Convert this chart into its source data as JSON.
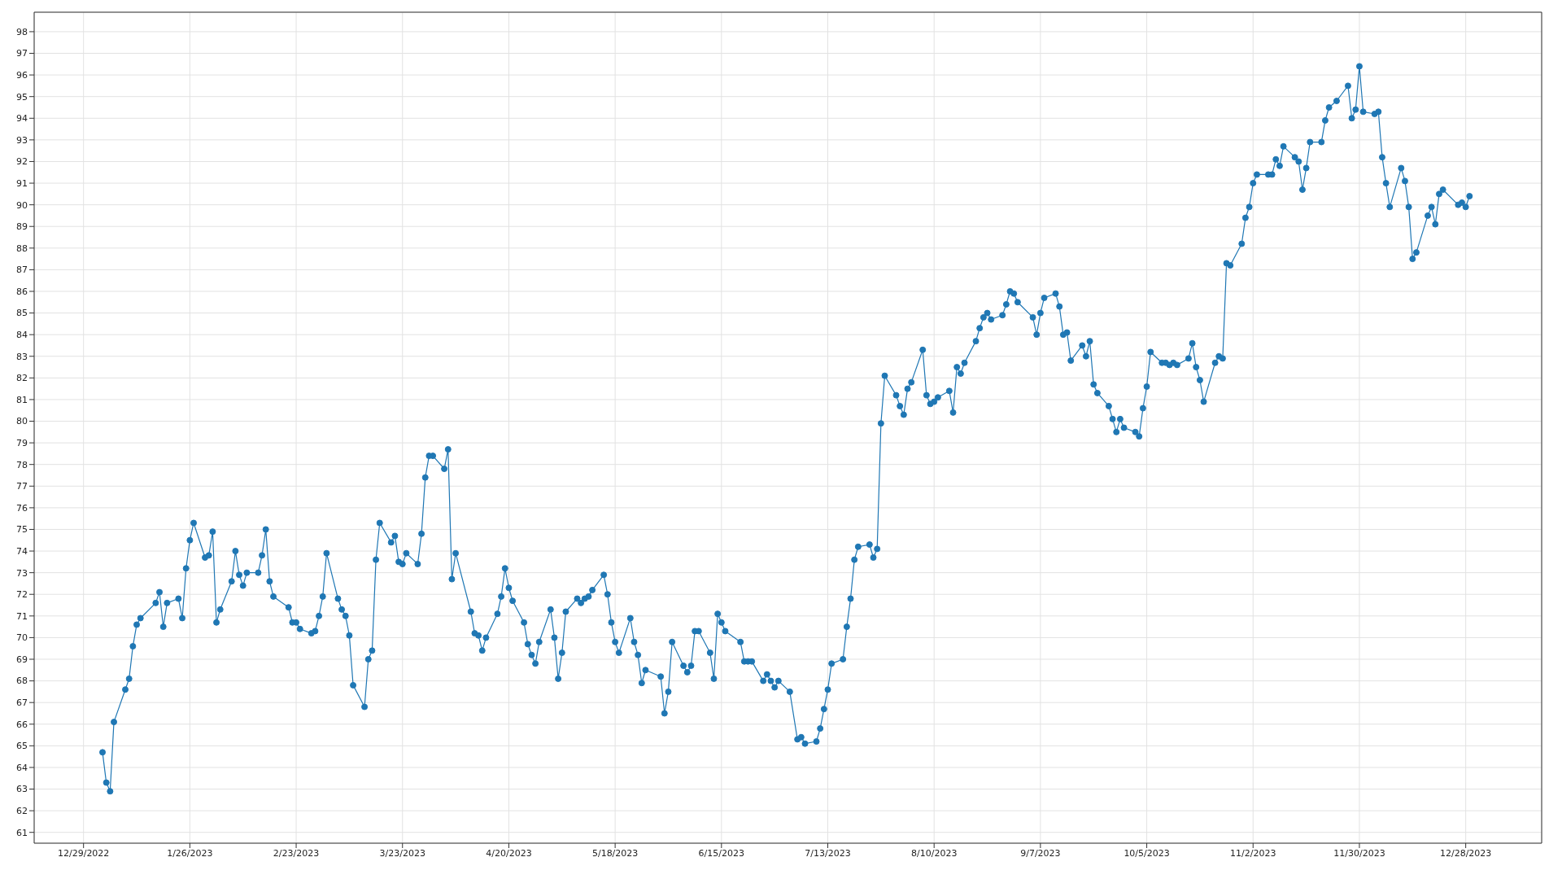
{
  "chart_data": {
    "type": "line",
    "color": "#1f77b4",
    "marker": "circle",
    "grid": true,
    "xlim": [
      "2022-12-16",
      "2024-01-17"
    ],
    "xticks": [
      {
        "value": "2022-12-29",
        "label": "12/29/2022"
      },
      {
        "value": "2023-01-26",
        "label": "1/26/2023"
      },
      {
        "value": "2023-02-23",
        "label": "2/23/2023"
      },
      {
        "value": "2023-03-23",
        "label": "3/23/2023"
      },
      {
        "value": "2023-04-20",
        "label": "4/20/2023"
      },
      {
        "value": "2023-05-18",
        "label": "5/18/2023"
      },
      {
        "value": "2023-06-15",
        "label": "6/15/2023"
      },
      {
        "value": "2023-07-13",
        "label": "7/13/2023"
      },
      {
        "value": "2023-08-10",
        "label": "8/10/2023"
      },
      {
        "value": "2023-09-07",
        "label": "9/7/2023"
      },
      {
        "value": "2023-10-05",
        "label": "10/5/2023"
      },
      {
        "value": "2023-11-02",
        "label": "11/2/2023"
      },
      {
        "value": "2023-11-30",
        "label": "11/30/2023"
      },
      {
        "value": "2023-12-28",
        "label": "12/28/2023"
      }
    ],
    "ylim": [
      60.5,
      98.9
    ],
    "yticks": [
      61,
      62,
      63,
      64,
      65,
      66,
      67,
      68,
      69,
      70,
      71,
      72,
      73,
      74,
      75,
      76,
      77,
      78,
      79,
      80,
      81,
      82,
      83,
      84,
      85,
      86,
      87,
      88,
      89,
      90,
      91,
      92,
      93,
      94,
      95,
      96,
      97,
      98
    ],
    "x": [
      "2023-01-03",
      "2023-01-04",
      "2023-01-05",
      "2023-01-06",
      "2023-01-09",
      "2023-01-10",
      "2023-01-11",
      "2023-01-12",
      "2023-01-13",
      "2023-01-17",
      "2023-01-18",
      "2023-01-19",
      "2023-01-20",
      "2023-01-23",
      "2023-01-24",
      "2023-01-25",
      "2023-01-26",
      "2023-01-27",
      "2023-01-30",
      "2023-01-31",
      "2023-02-01",
      "2023-02-02",
      "2023-02-03",
      "2023-02-06",
      "2023-02-07",
      "2023-02-08",
      "2023-02-09",
      "2023-02-10",
      "2023-02-13",
      "2023-02-14",
      "2023-02-15",
      "2023-02-16",
      "2023-02-17",
      "2023-02-21",
      "2023-02-22",
      "2023-02-23",
      "2023-02-24",
      "2023-02-27",
      "2023-02-28",
      "2023-03-01",
      "2023-03-02",
      "2023-03-03",
      "2023-03-06",
      "2023-03-07",
      "2023-03-08",
      "2023-03-09",
      "2023-03-10",
      "2023-03-13",
      "2023-03-14",
      "2023-03-15",
      "2023-03-16",
      "2023-03-17",
      "2023-03-20",
      "2023-03-21",
      "2023-03-22",
      "2023-03-23",
      "2023-03-24",
      "2023-03-27",
      "2023-03-28",
      "2023-03-29",
      "2023-03-30",
      "2023-03-31",
      "2023-04-03",
      "2023-04-04",
      "2023-04-05",
      "2023-04-06",
      "2023-04-10",
      "2023-04-11",
      "2023-04-12",
      "2023-04-13",
      "2023-04-14",
      "2023-04-17",
      "2023-04-18",
      "2023-04-19",
      "2023-04-20",
      "2023-04-21",
      "2023-04-24",
      "2023-04-25",
      "2023-04-26",
      "2023-04-27",
      "2023-04-28",
      "2023-05-01",
      "2023-05-02",
      "2023-05-03",
      "2023-05-04",
      "2023-05-05",
      "2023-05-08",
      "2023-05-09",
      "2023-05-10",
      "2023-05-11",
      "2023-05-12",
      "2023-05-15",
      "2023-05-16",
      "2023-05-17",
      "2023-05-18",
      "2023-05-19",
      "2023-05-22",
      "2023-05-23",
      "2023-05-24",
      "2023-05-25",
      "2023-05-26",
      "2023-05-30",
      "2023-05-31",
      "2023-06-01",
      "2023-06-02",
      "2023-06-05",
      "2023-06-06",
      "2023-06-07",
      "2023-06-08",
      "2023-06-09",
      "2023-06-12",
      "2023-06-13",
      "2023-06-14",
      "2023-06-15",
      "2023-06-16",
      "2023-06-20",
      "2023-06-21",
      "2023-06-22",
      "2023-06-23",
      "2023-06-26",
      "2023-06-27",
      "2023-06-28",
      "2023-06-29",
      "2023-06-30",
      "2023-07-03",
      "2023-07-05",
      "2023-07-06",
      "2023-07-07",
      "2023-07-10",
      "2023-07-11",
      "2023-07-12",
      "2023-07-13",
      "2023-07-14",
      "2023-07-17",
      "2023-07-18",
      "2023-07-19",
      "2023-07-20",
      "2023-07-21",
      "2023-07-24",
      "2023-07-25",
      "2023-07-26",
      "2023-07-27",
      "2023-07-28",
      "2023-07-31",
      "2023-08-01",
      "2023-08-02",
      "2023-08-03",
      "2023-08-04",
      "2023-08-07",
      "2023-08-08",
      "2023-08-09",
      "2023-08-10",
      "2023-08-11",
      "2023-08-14",
      "2023-08-15",
      "2023-08-16",
      "2023-08-17",
      "2023-08-18",
      "2023-08-21",
      "2023-08-22",
      "2023-08-23",
      "2023-08-24",
      "2023-08-25",
      "2023-08-28",
      "2023-08-29",
      "2023-08-30",
      "2023-08-31",
      "2023-09-01",
      "2023-09-05",
      "2023-09-06",
      "2023-09-07",
      "2023-09-08",
      "2023-09-11",
      "2023-09-12",
      "2023-09-13",
      "2023-09-14",
      "2023-09-15",
      "2023-09-18",
      "2023-09-19",
      "2023-09-20",
      "2023-09-21",
      "2023-09-22",
      "2023-09-25",
      "2023-09-26",
      "2023-09-27",
      "2023-09-28",
      "2023-09-29",
      "2023-10-02",
      "2023-10-03",
      "2023-10-04",
      "2023-10-05",
      "2023-10-06",
      "2023-10-09",
      "2023-10-10",
      "2023-10-11",
      "2023-10-12",
      "2023-10-13",
      "2023-10-16",
      "2023-10-17",
      "2023-10-18",
      "2023-10-19",
      "2023-10-20",
      "2023-10-23",
      "2023-10-24",
      "2023-10-25",
      "2023-10-26",
      "2023-10-27",
      "2023-10-30",
      "2023-10-31",
      "2023-11-01",
      "2023-11-02",
      "2023-11-03",
      "2023-11-06",
      "2023-11-07",
      "2023-11-08",
      "2023-11-09",
      "2023-11-10",
      "2023-11-13",
      "2023-11-14",
      "2023-11-15",
      "2023-11-16",
      "2023-11-17",
      "2023-11-20",
      "2023-11-21",
      "2023-11-22",
      "2023-11-24",
      "2023-11-27",
      "2023-11-28",
      "2023-11-29",
      "2023-11-30",
      "2023-12-01",
      "2023-12-04",
      "2023-12-05",
      "2023-12-06",
      "2023-12-07",
      "2023-12-08",
      "2023-12-11",
      "2023-12-12",
      "2023-12-13",
      "2023-12-14",
      "2023-12-15",
      "2023-12-18",
      "2023-12-19",
      "2023-12-20",
      "2023-12-21",
      "2023-12-22",
      "2023-12-26",
      "2023-12-27",
      "2023-12-28",
      "2023-12-29"
    ],
    "values": [
      64.7,
      63.3,
      62.9,
      66.1,
      67.6,
      68.1,
      69.6,
      70.6,
      70.9,
      71.6,
      72.1,
      70.5,
      71.6,
      71.8,
      70.9,
      73.2,
      74.5,
      75.3,
      73.7,
      73.8,
      74.9,
      70.7,
      71.3,
      72.6,
      74.0,
      72.9,
      72.4,
      73.0,
      73.0,
      73.8,
      75.0,
      72.6,
      71.9,
      71.4,
      70.7,
      70.7,
      70.4,
      70.2,
      70.3,
      71.0,
      71.9,
      73.9,
      71.8,
      71.3,
      71.0,
      70.1,
      67.8,
      66.8,
      69.0,
      69.4,
      73.6,
      75.3,
      74.4,
      74.7,
      73.5,
      73.4,
      73.9,
      73.4,
      74.8,
      77.4,
      78.4,
      78.4,
      77.8,
      78.7,
      72.7,
      73.9,
      71.2,
      70.2,
      70.1,
      69.4,
      70.0,
      71.1,
      71.9,
      73.2,
      72.3,
      71.7,
      70.7,
      69.7,
      69.2,
      68.8,
      69.8,
      71.3,
      70.0,
      68.1,
      69.3,
      71.2,
      71.8,
      71.6,
      71.8,
      71.9,
      72.2,
      72.9,
      72.0,
      70.7,
      69.8,
      69.3,
      70.9,
      69.8,
      69.2,
      67.9,
      68.5,
      68.2,
      66.5,
      67.5,
      69.8,
      68.7,
      68.4,
      68.7,
      70.3,
      70.3,
      69.3,
      68.1,
      71.1,
      70.7,
      70.3,
      69.8,
      68.9,
      68.9,
      68.9,
      68.0,
      68.3,
      68.0,
      67.7,
      68.0,
      67.5,
      65.3,
      65.4,
      65.1,
      65.2,
      65.8,
      66.7,
      67.6,
      68.8,
      69.0,
      70.5,
      71.8,
      73.6,
      74.2,
      74.3,
      73.7,
      74.1,
      79.9,
      82.1,
      81.2,
      80.7,
      80.3,
      81.5,
      81.8,
      83.3,
      81.2,
      80.8,
      80.9,
      81.1,
      81.4,
      80.4,
      82.5,
      82.2,
      82.7,
      83.7,
      84.3,
      84.8,
      85.0,
      84.7,
      84.9,
      85.4,
      86.0,
      85.9,
      85.5,
      84.8,
      84.0,
      85.0,
      85.7,
      85.9,
      85.3,
      84.0,
      84.1,
      82.8,
      83.5,
      83.0,
      83.7,
      81.7,
      81.3,
      80.7,
      80.1,
      79.5,
      80.1,
      79.7,
      79.5,
      79.3,
      80.6,
      81.6,
      83.2,
      82.7,
      82.7,
      82.6,
      82.7,
      82.6,
      82.9,
      83.6,
      82.5,
      81.9,
      80.9,
      82.7,
      83.0,
      82.9,
      87.3,
      87.2,
      88.2,
      89.4,
      89.9,
      91.0,
      91.4,
      91.4,
      91.4,
      92.1,
      91.8,
      92.7,
      92.2,
      92.0,
      90.7,
      91.7,
      92.9,
      92.9,
      93.9,
      94.5,
      94.8,
      95.5,
      94.0,
      94.4,
      96.4,
      94.3,
      94.2,
      94.3,
      92.2,
      91.0,
      89.9,
      91.7,
      91.1,
      89.9,
      87.5,
      87.8,
      89.5,
      89.9,
      89.1,
      90.5,
      90.7,
      90.0,
      90.1,
      89.9,
      90.4
    ]
  }
}
